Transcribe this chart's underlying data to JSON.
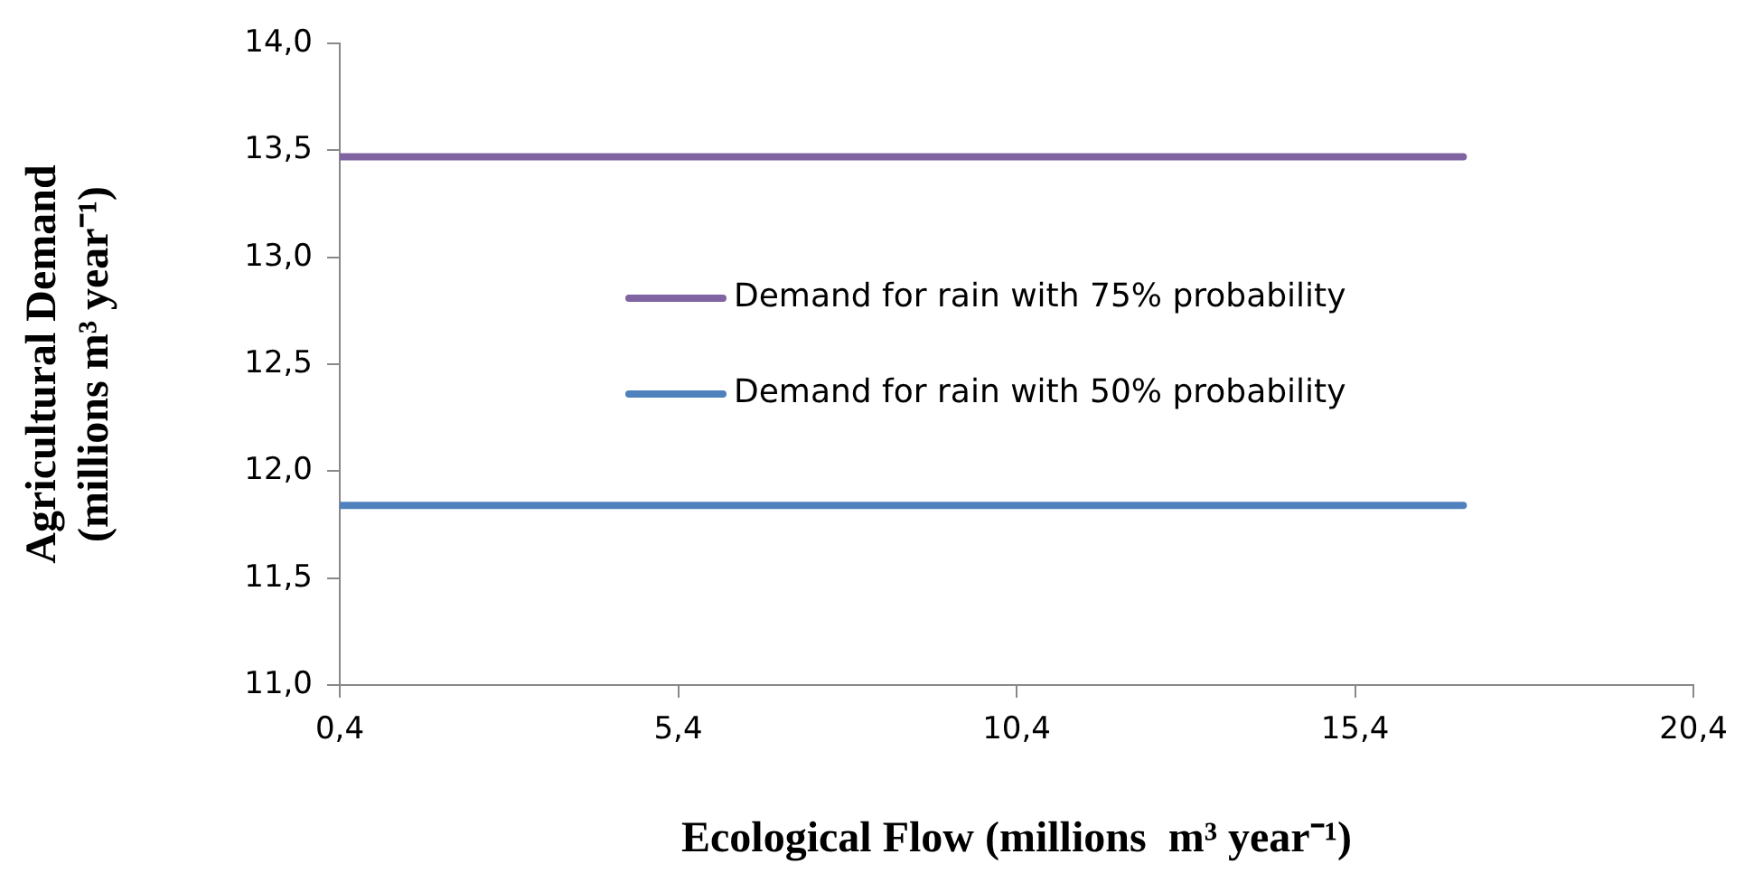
{
  "chart_data": {
    "type": "line",
    "xlabel": "Ecological Flow (millions  m³ year⁻¹)",
    "ylabel": "Agricultural Demand (millions m³ year⁻¹)",
    "x": [
      0.4,
      17.0
    ],
    "series": [
      {
        "name": "Demand for rain with 75% probability",
        "color": "#8064a2",
        "values": [
          13.47,
          13.47
        ]
      },
      {
        "name": "Demand for rain with 50% probability",
        "color": "#4f81bd",
        "values": [
          11.84,
          11.84
        ]
      }
    ],
    "xlim": [
      0.4,
      20.4
    ],
    "xticks": [
      {
        "value": 0.4,
        "label": "0,4"
      },
      {
        "value": 5.4,
        "label": "5,4"
      },
      {
        "value": 10.4,
        "label": "10,4"
      },
      {
        "value": 15.4,
        "label": "15,4"
      },
      {
        "value": 20.4,
        "label": "20,4"
      }
    ],
    "ylim": [
      11.0,
      14.0
    ],
    "yticks": [
      {
        "value": 11.0,
        "label": "11,0"
      },
      {
        "value": 11.5,
        "label": "11,5"
      },
      {
        "value": 12.0,
        "label": "12,0"
      },
      {
        "value": 12.5,
        "label": "12,5"
      },
      {
        "value": 13.0,
        "label": "13,0"
      },
      {
        "value": 13.5,
        "label": "13,5"
      },
      {
        "value": 14.0,
        "label": "14,0"
      }
    ],
    "grid": false,
    "legend": "right",
    "marker": "none",
    "line_style": "solid"
  }
}
